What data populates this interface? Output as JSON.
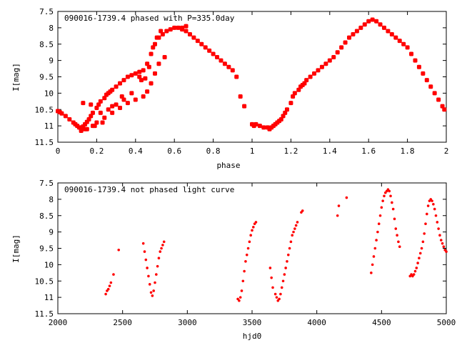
{
  "chart_data": [
    {
      "type": "scatter",
      "title": "090016-1739.4 phased with P=335.0day",
      "xlabel": "phase",
      "ylabel": "I[mag]",
      "xlim": [
        0,
        2
      ],
      "ylim": [
        11.5,
        7.5
      ],
      "y_inverted": true,
      "xticks": [
        "0",
        "0.2",
        "0.4",
        "0.6",
        "0.8",
        "1",
        "1.2",
        "1.4",
        "1.6",
        "1.8",
        "2"
      ],
      "yticks": [
        "7.5",
        "8",
        "8.5",
        "9",
        "9.5",
        "10",
        "10.5",
        "11",
        "11.5"
      ],
      "marker_color": "#ff0000",
      "marker": "plus-cross",
      "grid": false,
      "series": [
        {
          "x": [
            0.0,
            0.01,
            0.02,
            0.04,
            0.06,
            0.08,
            0.09,
            0.1,
            0.11,
            0.12,
            0.13,
            0.14,
            0.15,
            0.16,
            0.17,
            0.18,
            0.2,
            0.21,
            0.22,
            0.24,
            0.25,
            0.26,
            0.27,
            0.28,
            0.3,
            0.32,
            0.34,
            0.36,
            0.38,
            0.4,
            0.42,
            0.44,
            0.46,
            0.48,
            0.5,
            0.52,
            0.54,
            0.56,
            0.58,
            0.6,
            0.62,
            0.64,
            0.66,
            0.68,
            0.7,
            0.72,
            0.74,
            0.76,
            0.78,
            0.8,
            0.82,
            0.84,
            0.86,
            0.88,
            0.9,
            0.92,
            0.94,
            0.96,
            0.12,
            0.14,
            0.18,
            0.2,
            0.24,
            0.28,
            0.32,
            0.36,
            0.4,
            0.44,
            0.46,
            0.48,
            0.5,
            0.52,
            0.55,
            0.64,
            0.66,
            0.13,
            0.17,
            0.22,
            0.26,
            0.3,
            0.34,
            0.38,
            0.43,
            0.47,
            0.49,
            0.51,
            0.53,
            0.42,
            0.45,
            0.28,
            0.33,
            0.12,
            0.15,
            0.19,
            0.23
          ],
          "y": [
            10.55,
            10.58,
            10.62,
            10.7,
            10.8,
            10.9,
            10.95,
            11.0,
            11.05,
            11.1,
            11.02,
            10.95,
            10.88,
            10.8,
            10.7,
            10.6,
            10.45,
            10.35,
            10.25,
            10.15,
            10.05,
            10.0,
            9.95,
            9.9,
            9.8,
            9.7,
            9.6,
            9.5,
            9.45,
            9.4,
            9.35,
            9.3,
            9.1,
            8.8,
            8.5,
            8.3,
            8.2,
            8.1,
            8.05,
            8.0,
            8.0,
            8.05,
            8.1,
            8.2,
            8.3,
            8.4,
            8.5,
            8.6,
            8.7,
            8.8,
            8.9,
            9.0,
            9.1,
            9.2,
            9.3,
            9.5,
            10.1,
            10.4,
            11.05,
            11.1,
            11.0,
            10.9,
            10.75,
            10.6,
            10.45,
            10.3,
            10.2,
            10.1,
            9.95,
            9.7,
            9.4,
            9.1,
            8.9,
            8.0,
            7.95,
            10.3,
            10.35,
            10.6,
            10.5,
            10.35,
            10.2,
            10.0,
            9.6,
            9.2,
            8.6,
            8.3,
            8.1,
            9.5,
            9.55,
            10.4,
            10.1,
            11.15,
            11.1,
            11.0,
            10.9
          ]
        },
        {
          "x": [
            1.0,
            1.01,
            1.02,
            1.04,
            1.06,
            1.08,
            1.09,
            1.1,
            1.11,
            1.12,
            1.13,
            1.14,
            1.15,
            1.16,
            1.17,
            1.18,
            1.2,
            1.21,
            1.22,
            1.24,
            1.25,
            1.26,
            1.27,
            1.28,
            1.3,
            1.32,
            1.34,
            1.36,
            1.38,
            1.4,
            1.42,
            1.44,
            1.46,
            1.48,
            1.5,
            1.52,
            1.54,
            1.56,
            1.58,
            1.6,
            1.62,
            1.64,
            1.66,
            1.68,
            1.7,
            1.72,
            1.74,
            1.76,
            1.78,
            1.8,
            1.82,
            1.84,
            1.86,
            1.88,
            1.9,
            1.92,
            1.94,
            1.96,
            1.98,
            1.99
          ],
          "y": [
            10.95,
            11.0,
            10.95,
            11.0,
            11.05,
            11.05,
            11.1,
            11.05,
            11.0,
            10.95,
            10.9,
            10.85,
            10.8,
            10.7,
            10.6,
            10.5,
            10.3,
            10.1,
            10.0,
            9.9,
            9.8,
            9.75,
            9.7,
            9.6,
            9.5,
            9.4,
            9.3,
            9.2,
            9.1,
            9.0,
            8.9,
            8.75,
            8.6,
            8.45,
            8.3,
            8.2,
            8.1,
            8.0,
            7.9,
            7.8,
            7.75,
            7.8,
            7.9,
            8.0,
            8.1,
            8.2,
            8.3,
            8.4,
            8.5,
            8.6,
            8.8,
            9.0,
            9.2,
            9.4,
            9.6,
            9.8,
            10.0,
            10.2,
            10.4,
            10.5
          ]
        }
      ]
    },
    {
      "type": "scatter",
      "title": "090016-1739.4 not phased light curve",
      "xlabel": "hjd0",
      "ylabel": "I[mag]",
      "xlim": [
        2000,
        5000
      ],
      "ylim": [
        11.5,
        7.5
      ],
      "y_inverted": true,
      "xticks": [
        "2000",
        "2500",
        "3000",
        "3500",
        "4000",
        "4500",
        "5000"
      ],
      "yticks": [
        "7.5",
        "8",
        "8.5",
        "9",
        "9.5",
        "10",
        "10.5",
        "11",
        "11.5"
      ],
      "marker_color": "#ff0000",
      "marker": "dot",
      "grid": false,
      "series": [
        {
          "x": [
            2370,
            2380,
            2390,
            2400,
            2410,
            2430,
            2470,
            2660,
            2670,
            2680,
            2690,
            2700,
            2710,
            2720,
            2730,
            2740,
            2750,
            2760,
            2770,
            2780,
            2790,
            2800,
            2810,
            2820,
            3390,
            3400,
            3410,
            3420,
            3430,
            3440,
            3450,
            3460,
            3470,
            3480,
            3490,
            3500,
            3510,
            3520,
            3530,
            3640,
            3650,
            3660,
            3680,
            3690,
            3700,
            3710,
            3720,
            3730,
            3740,
            3750,
            3760,
            3770,
            3780,
            3790,
            3800,
            3810,
            3820,
            3830,
            3840,
            3850,
            3880,
            3890,
            4160,
            4170,
            4230,
            4420,
            4430,
            4440,
            4450,
            4460,
            4470,
            4480,
            4490,
            4500,
            4510,
            4520,
            4530,
            4540,
            4550,
            4560,
            4570,
            4580,
            4590,
            4600,
            4610,
            4620,
            4630,
            4640,
            4720,
            4730,
            4740,
            4750,
            4760,
            4770,
            4780,
            4790,
            4800,
            4810,
            4820,
            4830,
            4840,
            4850,
            4860,
            4870,
            4880,
            4890,
            4900,
            4910,
            4920,
            4930,
            4940,
            4950,
            4960,
            4970,
            4980,
            4990,
            5000
          ],
          "y": [
            10.9,
            10.8,
            10.75,
            10.65,
            10.55,
            10.3,
            9.55,
            9.35,
            9.6,
            9.85,
            10.1,
            10.35,
            10.6,
            10.85,
            10.95,
            10.8,
            10.55,
            10.3,
            10.05,
            9.8,
            9.6,
            9.5,
            9.4,
            9.3,
            11.05,
            11.1,
            11.0,
            10.8,
            10.5,
            10.2,
            9.9,
            9.7,
            9.5,
            9.3,
            9.1,
            8.95,
            8.85,
            8.75,
            8.7,
            10.1,
            10.4,
            10.7,
            10.9,
            11.0,
            11.1,
            11.05,
            10.9,
            10.7,
            10.5,
            10.3,
            10.1,
            9.9,
            9.7,
            9.5,
            9.3,
            9.1,
            9.0,
            8.9,
            8.8,
            8.7,
            8.4,
            8.35,
            8.5,
            8.2,
            7.95,
            10.25,
            10.0,
            9.75,
            9.5,
            9.25,
            9.0,
            8.75,
            8.5,
            8.25,
            8.05,
            7.9,
            7.8,
            7.75,
            7.7,
            7.75,
            7.9,
            8.1,
            8.3,
            8.6,
            8.9,
            9.1,
            9.3,
            9.45,
            10.35,
            10.3,
            10.35,
            10.3,
            10.2,
            10.1,
            9.95,
            9.8,
            9.65,
            9.5,
            9.3,
            9.05,
            8.75,
            8.45,
            8.2,
            8.05,
            8.0,
            8.05,
            8.15,
            8.3,
            8.5,
            8.7,
            8.9,
            9.1,
            9.25,
            9.35,
            9.45,
            9.55,
            9.6
          ]
        }
      ]
    }
  ]
}
